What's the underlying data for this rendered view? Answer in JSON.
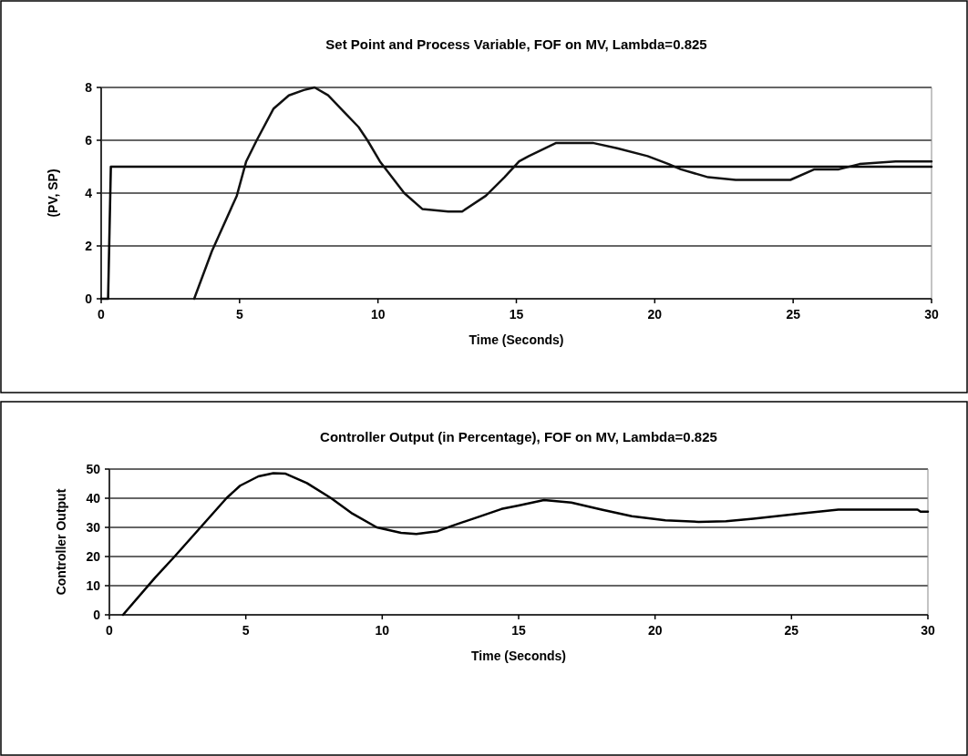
{
  "chart_data": [
    {
      "type": "line",
      "title": "Set Point and Process Variable, FOF on MV, Lambda=0.825",
      "xlabel": "Time (Seconds)",
      "ylabel": "(PV, SP)",
      "xlim": [
        0,
        30
      ],
      "xticks": [
        0,
        5,
        10,
        15,
        20,
        25,
        30
      ],
      "ylim": [
        0,
        8
      ],
      "yticks": [
        0,
        2,
        4,
        6,
        8
      ],
      "grid": "y",
      "marker": "none",
      "line_style": "solid",
      "series": [
        {
          "color": "#000000",
          "x": [
            0,
            0.25,
            0.35,
            30
          ],
          "values": [
            0,
            0,
            5,
            5
          ]
        },
        {
          "color": "#111111",
          "x": [
            3.36,
            4.0,
            4.9,
            5.24,
            5.62,
            6.23,
            6.78,
            7.32,
            7.71,
            8.2,
            8.75,
            9.3,
            9.62,
            10.07,
            10.95,
            11.6,
            12.54,
            13.04,
            13.9,
            14.57,
            15.1,
            15.45,
            16.44,
            17.76,
            18.64,
            19.74,
            20.5,
            20.94,
            21.93,
            22.92,
            24.1,
            24.9,
            25.77,
            26.65,
            27.4,
            28.7,
            30
          ],
          "values": [
            0,
            1.8,
            3.9,
            5.2,
            6.0,
            7.2,
            7.7,
            7.9,
            8.0,
            7.7,
            7.1,
            6.5,
            6.0,
            5.2,
            4.0,
            3.4,
            3.3,
            3.3,
            3.9,
            4.6,
            5.2,
            5.4,
            5.9,
            5.9,
            5.7,
            5.4,
            5.1,
            4.9,
            4.6,
            4.5,
            4.5,
            4.5,
            4.9,
            4.9,
            5.1,
            5.2,
            5.2
          ]
        }
      ]
    },
    {
      "type": "line",
      "title": "Controller Output (in Percentage), FOF on MV, Lambda=0.825",
      "xlabel": "Time (Seconds)",
      "ylabel": "Controller Output",
      "xlim": [
        0,
        30
      ],
      "xticks": [
        0,
        5,
        10,
        15,
        20,
        25,
        30
      ],
      "ylim": [
        0,
        50
      ],
      "yticks": [
        0,
        10,
        20,
        30,
        40,
        50
      ],
      "grid": "y",
      "marker": "none",
      "line_style": "solid",
      "series": [
        {
          "color": "#000000",
          "x": [
            0.5,
            1.67,
            2.39,
            3.34,
            4.29,
            4.79,
            5.46,
            6.01,
            6.46,
            7.24,
            8.13,
            8.91,
            9.8,
            10.69,
            11.25,
            12.03,
            12.58,
            13.59,
            14.37,
            15.0,
            15.93,
            16.93,
            18.04,
            19.15,
            20.38,
            21.6,
            22.6,
            23.6,
            25.27,
            26.72,
            29.62,
            29.73,
            30
          ],
          "values": [
            0,
            12.7,
            20,
            30,
            40,
            44.3,
            47.5,
            48.6,
            48.4,
            45.2,
            40,
            34.7,
            30,
            28.1,
            27.7,
            28.7,
            30.6,
            33.8,
            36.3,
            37.5,
            39.4,
            38.5,
            36.1,
            33.8,
            32.4,
            31.9,
            32.1,
            33,
            34.7,
            36.1,
            36.1,
            35.4,
            35.4
          ]
        }
      ]
    }
  ]
}
